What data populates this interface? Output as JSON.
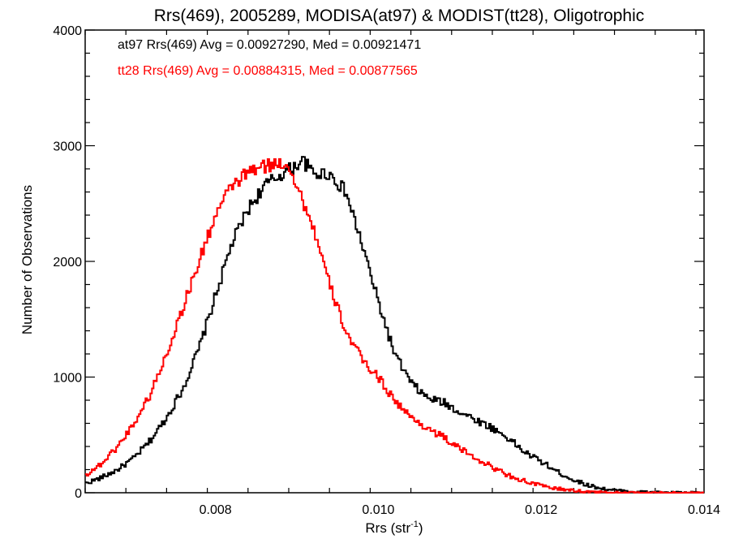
{
  "chart_data": {
    "type": "histogram-step",
    "title": "Rrs(469), 2005289, MODISA(at97) & MODIST(tt28), Oligotrophic",
    "xlabel_main": "Rrs (str",
    "xlabel_sup": "-1",
    "xlabel_tail": ")",
    "ylabel": "Number of Observations",
    "xlim": [
      0.0064,
      0.014
    ],
    "ylim": [
      0,
      4000
    ],
    "xticks": [
      0.008,
      0.01,
      0.012,
      0.014
    ],
    "xtick_labels": [
      "0.008",
      "0.010",
      "0.012",
      "0.014"
    ],
    "yticks": [
      0,
      1000,
      2000,
      3000,
      4000
    ],
    "ytick_labels": [
      "0",
      "1000",
      "2000",
      "3000",
      "4000"
    ],
    "grid": false,
    "legend_placement": "top-left",
    "series": [
      {
        "name": "at97",
        "color": "#000000",
        "annotation": "at97 Rrs(469) Avg = 0.00927290, Med = 0.00921471",
        "x": [
          0.0064,
          0.0066,
          0.0068,
          0.007,
          0.0072,
          0.0074,
          0.0076,
          0.0078,
          0.008,
          0.0082,
          0.0084,
          0.0086,
          0.0088,
          0.009,
          0.00905,
          0.0091,
          0.0092,
          0.0094,
          0.0096,
          0.0098,
          0.01,
          0.0102,
          0.0104,
          0.0106,
          0.0108,
          0.011,
          0.0112,
          0.0114,
          0.0116,
          0.0118,
          0.012,
          0.0122,
          0.0124,
          0.0126,
          0.0128,
          0.013,
          0.0132,
          0.0134,
          0.0136,
          0.0138,
          0.014
        ],
        "y": [
          80,
          130,
          200,
          300,
          450,
          650,
          900,
          1250,
          1700,
          2150,
          2450,
          2650,
          2750,
          2830,
          2880,
          2850,
          2760,
          2760,
          2600,
          2150,
          1650,
          1200,
          950,
          820,
          780,
          700,
          630,
          560,
          470,
          350,
          270,
          180,
          110,
          60,
          30,
          15,
          8,
          4,
          2,
          1,
          0
        ]
      },
      {
        "name": "tt28",
        "color": "#ff0000",
        "annotation": "tt28 Rrs(469) Avg = 0.00884315, Med = 0.00877565",
        "x": [
          0.0064,
          0.0066,
          0.0068,
          0.007,
          0.0072,
          0.0074,
          0.0076,
          0.0078,
          0.008,
          0.0082,
          0.0084,
          0.0086,
          0.0088,
          0.0089,
          0.009,
          0.0092,
          0.0094,
          0.0096,
          0.0098,
          0.01,
          0.0102,
          0.0104,
          0.0106,
          0.0108,
          0.011,
          0.0112,
          0.0114,
          0.0116,
          0.0118,
          0.012,
          0.0122,
          0.0124,
          0.0126,
          0.0128,
          0.013,
          0.0132,
          0.0134,
          0.0136,
          0.0138,
          0.014
        ],
        "y": [
          150,
          250,
          400,
          600,
          850,
          1200,
          1600,
          2000,
          2400,
          2650,
          2770,
          2820,
          2850,
          2840,
          2650,
          2300,
          1800,
          1400,
          1150,
          1000,
          800,
          650,
          560,
          480,
          380,
          300,
          220,
          150,
          100,
          60,
          35,
          18,
          8,
          3,
          1,
          0,
          0,
          0,
          0,
          0
        ]
      }
    ]
  }
}
